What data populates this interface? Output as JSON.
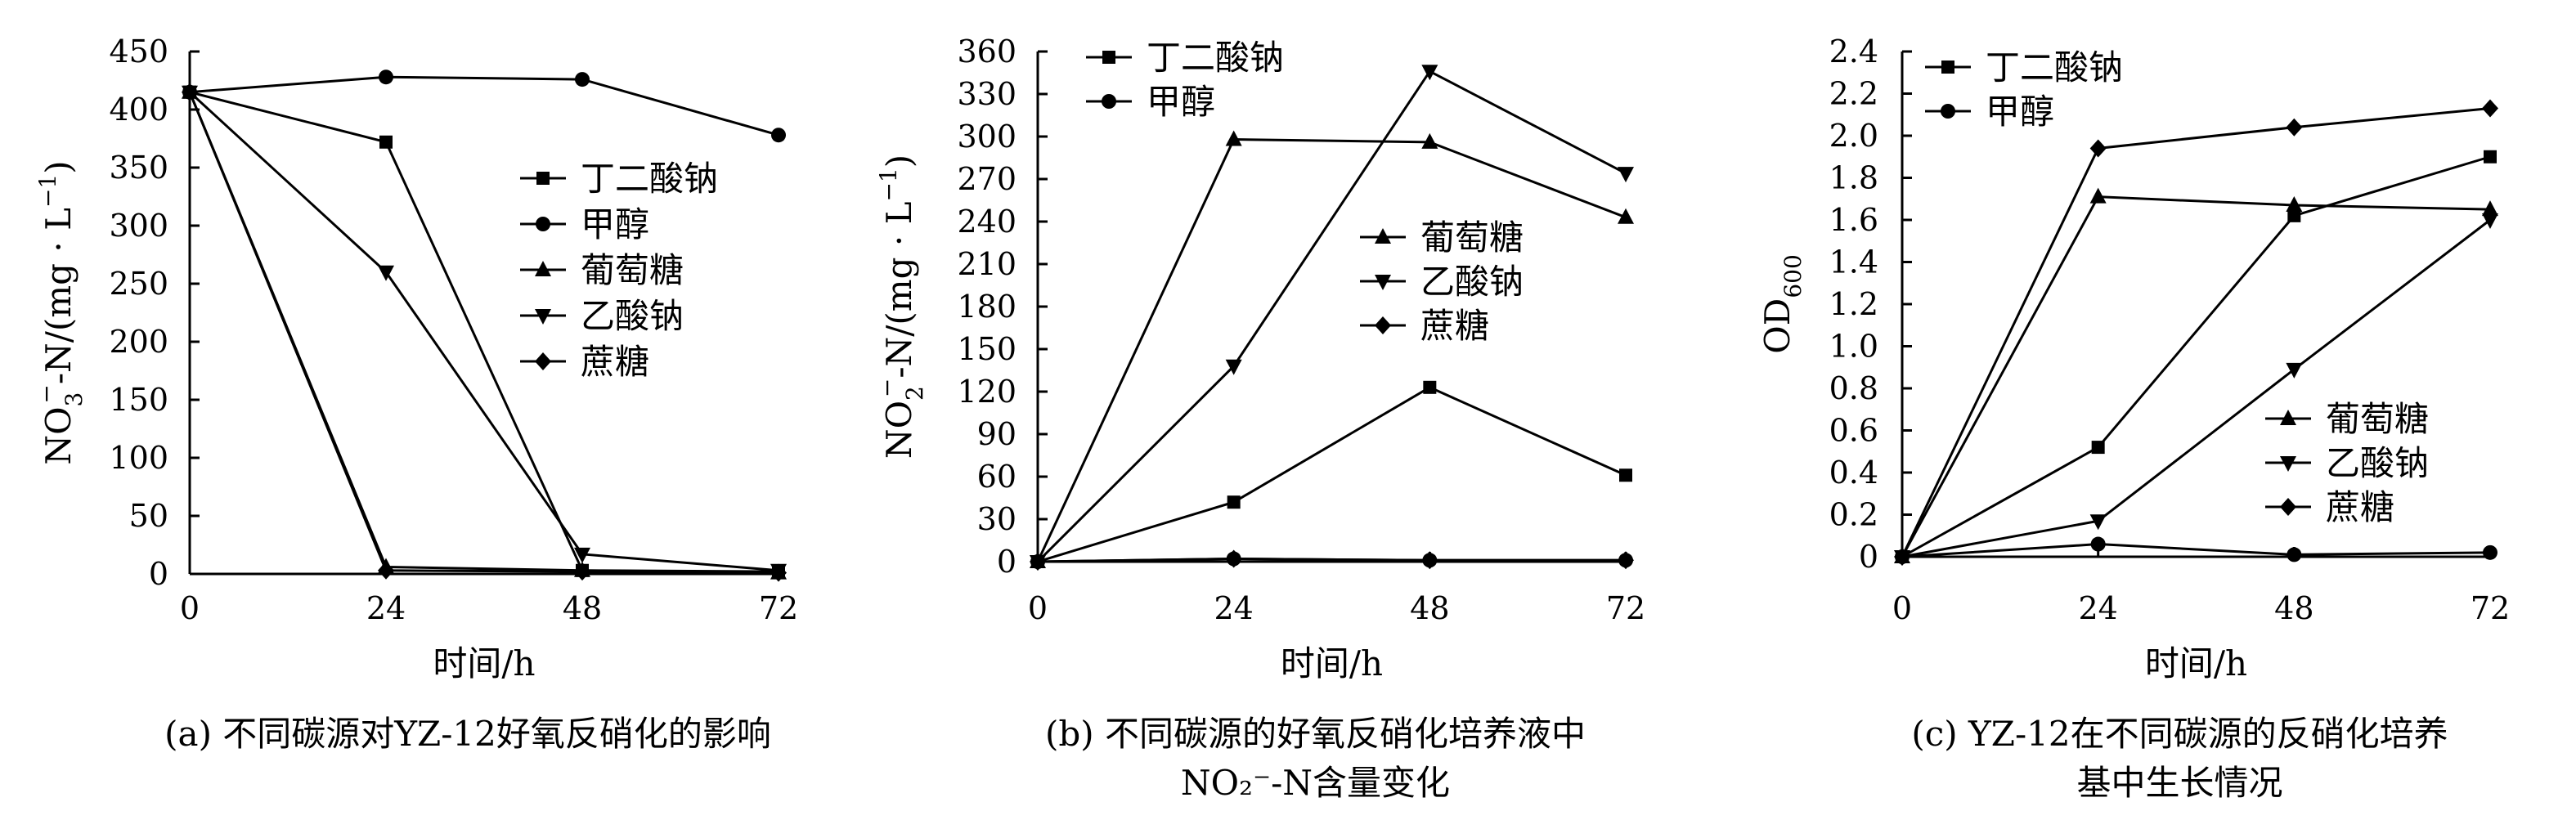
{
  "chart_data": [
    {
      "id": "a",
      "type": "line",
      "x": [
        0,
        24,
        48,
        72
      ],
      "x_ticks": [
        "0",
        "24",
        "48",
        "72"
      ],
      "ylim": [
        0,
        450
      ],
      "y_ticks": [
        "0",
        "50",
        "100",
        "150",
        "200",
        "250",
        "300",
        "350",
        "400",
        "450"
      ],
      "xlabel": "时间/h",
      "ylabel": {
        "pre": "NO",
        "sub": "3",
        "sup": "−",
        "post": "-N/(mg · L",
        "sup2": "−1",
        "end": ")"
      },
      "caption_lines": [
        "(a) 不同碳源对YZ-12好氧反硝化的影响"
      ],
      "legend_position": "right-middle",
      "series": [
        {
          "name": "丁二酸钠",
          "marker": "square",
          "values": [
            415,
            372,
            3,
            2
          ]
        },
        {
          "name": "甲醇",
          "marker": "circle",
          "values": [
            415,
            428,
            426,
            378
          ]
        },
        {
          "name": "葡萄糖",
          "marker": "triangle-up",
          "values": [
            415,
            6,
            3,
            1
          ]
        },
        {
          "name": "乙酸钠",
          "marker": "triangle-down",
          "values": [
            415,
            260,
            17,
            3
          ]
        },
        {
          "name": "蔗糖",
          "marker": "diamond",
          "values": [
            415,
            3,
            2,
            1
          ]
        }
      ]
    },
    {
      "id": "b",
      "type": "line",
      "x": [
        0,
        24,
        48,
        72
      ],
      "x_ticks": [
        "0",
        "24",
        "48",
        "72"
      ],
      "ylim": [
        0,
        360
      ],
      "y_ticks": [
        "0",
        "30",
        "60",
        "90",
        "120",
        "150",
        "180",
        "210",
        "240",
        "270",
        "300",
        "330",
        "360"
      ],
      "xlabel": "时间/h",
      "ylabel": {
        "pre": "NO",
        "sub": "2",
        "sup": "−",
        "post": "-N/(mg · L",
        "sup2": "−1",
        "end": ")"
      },
      "caption_lines": [
        "(b) 不同碳源的好氧反硝化培养液中",
        "NO₂⁻-N含量变化"
      ],
      "legend_position": "split: top-left and right-middle",
      "series": [
        {
          "name": "丁二酸钠",
          "marker": "square",
          "values": [
            0,
            42,
            123,
            61
          ]
        },
        {
          "name": "甲醇",
          "marker": "circle",
          "values": [
            0,
            2,
            1,
            1
          ]
        },
        {
          "name": "葡萄糖",
          "marker": "triangle-up",
          "values": [
            0,
            298,
            296,
            243
          ]
        },
        {
          "name": "乙酸钠",
          "marker": "triangle-down",
          "values": [
            0,
            138,
            346,
            274
          ]
        },
        {
          "name": "蔗糖",
          "marker": "diamond",
          "values": [
            0,
            2,
            1,
            1
          ]
        }
      ]
    },
    {
      "id": "c",
      "type": "line",
      "x": [
        0,
        24,
        48,
        72
      ],
      "x_ticks": [
        "0",
        "24",
        "48",
        "72"
      ],
      "ylim": [
        0,
        2.4
      ],
      "y_ticks": [
        "0",
        "0.2",
        "0.4",
        "0.6",
        "0.8",
        "1.0",
        "1.2",
        "1.4",
        "1.6",
        "1.8",
        "2.0",
        "2.2",
        "2.4"
      ],
      "xlabel": "时间/h",
      "ylabel": {
        "pre": "OD",
        "sub": "600"
      },
      "caption_lines": [
        "(c) YZ-12在不同碳源的反硝化培养",
        "基中生长情况"
      ],
      "legend_position": "split: top-left and bottom-right",
      "series": [
        {
          "name": "丁二酸钠",
          "marker": "square",
          "values": [
            0,
            0.52,
            1.62,
            1.9
          ]
        },
        {
          "name": "甲醇",
          "marker": "circle",
          "values": [
            0,
            0.06,
            0.01,
            0.02
          ]
        },
        {
          "name": "葡萄糖",
          "marker": "triangle-up",
          "values": [
            0,
            1.71,
            1.67,
            1.65
          ]
        },
        {
          "name": "乙酸钠",
          "marker": "triangle-down",
          "values": [
            0,
            0.17,
            0.89,
            1.6
          ]
        },
        {
          "name": "蔗糖",
          "marker": "diamond",
          "values": [
            0,
            1.94,
            2.04,
            2.13
          ]
        }
      ]
    }
  ]
}
